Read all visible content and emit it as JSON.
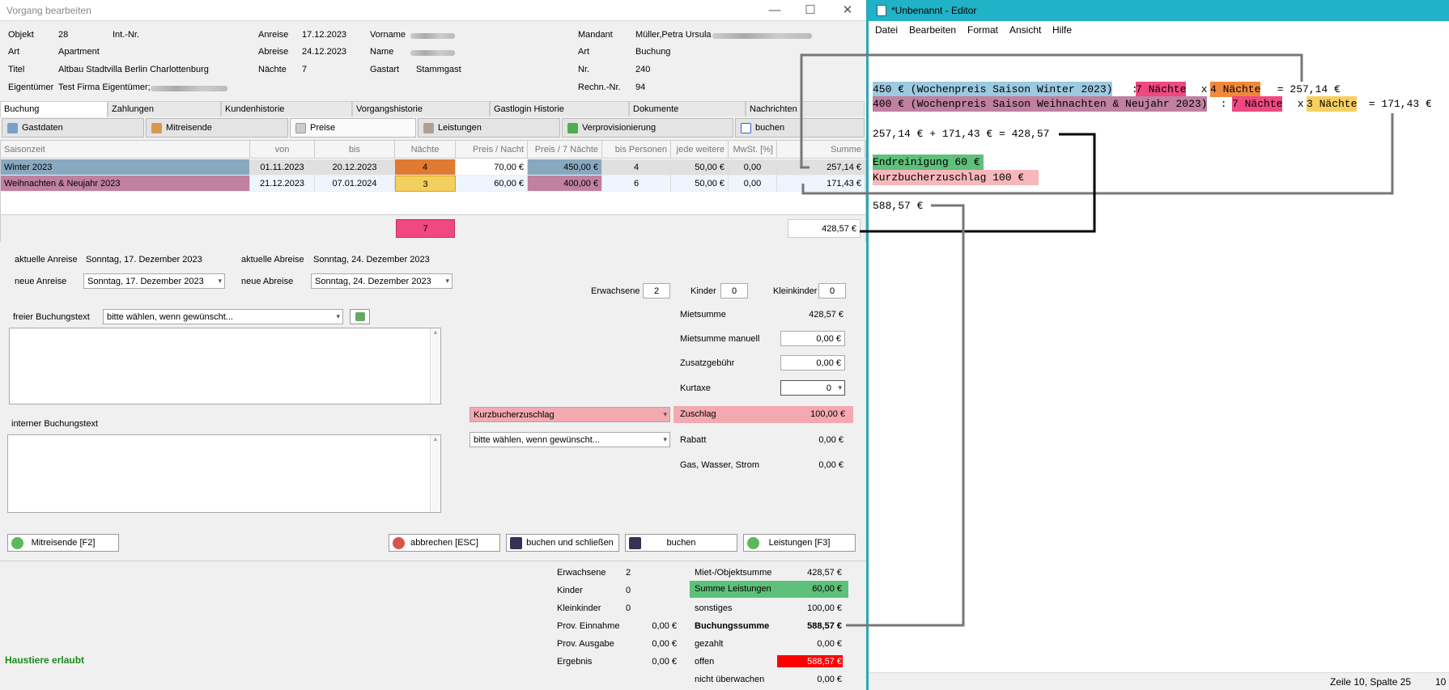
{
  "window": {
    "title": "Vorgang bearbeiten",
    "min": "—",
    "max": "☐",
    "close": "✕"
  },
  "header": {
    "objekt_l": "Objekt",
    "objekt_v": "28",
    "intnr_l": "Int.-Nr.",
    "art_l": "Art",
    "art_v": "Apartment",
    "titel_l": "Titel",
    "titel_v": "Altbau Stadtvilla Berlin Charlottenburg",
    "eigentuemer_l": "Eigentümer",
    "eigentuemer_v": "Test Firma Eigentümer;",
    "anreise_l": "Anreise",
    "anreise_v": "17.12.2023",
    "abreise_l": "Abreise",
    "abreise_v": "24.12.2023",
    "naechte_l": "Nächte",
    "naechte_v": "7",
    "vorname_l": "Vorname",
    "name_l": "Name",
    "gastart_l": "Gastart",
    "gastart_v": "Stammgast",
    "mandant_l": "Mandant",
    "mandant_v": "Müller,Petra Ursula",
    "art2_l": "Art",
    "art2_v": "Buchung",
    "nr_l": "Nr.",
    "nr_v": "240",
    "rechnr_l": "Rechn.-Nr.",
    "rechnr_v": "94"
  },
  "tabs1": [
    "Buchung",
    "Zahlungen",
    "Kundenhistorie",
    "Vorgangshistorie",
    "Gastlogin Historie",
    "Dokumente",
    "Nachrichten"
  ],
  "tabs2": [
    "Gastdaten",
    "Mitreisende",
    "Preise",
    "Leistungen",
    "Verprovisionierung",
    "buchen"
  ],
  "grid": {
    "headers": [
      "Saisonzeit",
      "von",
      "bis",
      "Nächte",
      "Preis / Nacht",
      "Preis / 7 Nächte",
      "bis Personen",
      "jede weitere",
      "MwSt. [%]",
      "Summe"
    ],
    "rows": [
      [
        "Winter 2023",
        "01.11.2023",
        "20.12.2023",
        "4",
        "70,00 €",
        "450,00 €",
        "4",
        "50,00 €",
        "0,00",
        "257,14 €"
      ],
      [
        "Weihnachten & Neujahr 2023",
        "21.12.2023",
        "07.01.2024",
        "3",
        "60,00 €",
        "400,00 €",
        "6",
        "50,00 €",
        "0,00",
        "171,43 €"
      ]
    ],
    "total_nights": "7",
    "total_sum": "428,57 €"
  },
  "dates": {
    "aktuelle_anreise_l": "aktuelle Anreise",
    "aktuelle_anreise_v": "Sonntag, 17. Dezember 2023",
    "aktuelle_abreise_l": "aktuelle Abreise",
    "aktuelle_abreise_v": "Sonntag, 24. Dezember 2023",
    "neue_anreise_l": "neue Anreise",
    "neue_anreise_v": "Sonntag, 17. Dezember 2023",
    "neue_abreise_l": "neue Abreise",
    "neue_abreise_v": "Sonntag, 24. Dezember 2023"
  },
  "persons": {
    "erw_l": "Erwachsene",
    "erw_v": "2",
    "kinder_l": "Kinder",
    "kinder_v": "0",
    "klein_l": "Kleinkinder",
    "klein_v": "0"
  },
  "texts": {
    "frei_l": "freier Buchungstext",
    "frei_v": "bitte wählen, wenn gewünscht...",
    "intern_l": "interner Buchungstext"
  },
  "pricing": {
    "mietsumme_l": "Mietsumme",
    "mietsumme_v": "428,57 €",
    "manuell_l": "Mietsumme manuell",
    "manuell_v": "0,00 €",
    "zusatz_l": "Zusatzgebühr",
    "zusatz_v": "0,00 €",
    "kurtaxe_l": "Kurtaxe",
    "kurtaxe_v": "0",
    "zuschlag_sel": "Kurzbucherzuschlag",
    "zuschlag_l": "Zuschlag",
    "zuschlag_v": "100,00 €",
    "rabatt_sel": "bitte wählen, wenn gewünscht...",
    "rabatt_l": "Rabatt",
    "rabatt_v": "0,00 €",
    "gas_l": "Gas, Wasser, Strom",
    "gas_v": "0,00 €"
  },
  "buttons": {
    "mitreisende": "Mitreisende [F2]",
    "abbrechen": "abbrechen [ESC]",
    "buchen_schliessen": "buchen und schließen",
    "buchen": "buchen",
    "leistungen": "Leistungen [F3]"
  },
  "summary": {
    "erw_l": "Erwachsene",
    "erw_v": "2",
    "kinder_l": "Kinder",
    "kinder_v": "0",
    "klein_l": "Kleinkinder",
    "klein_v": "0",
    "prov_ein_l": "Prov. Einnahme",
    "prov_ein_v": "0,00 €",
    "prov_aus_l": "Prov. Ausgabe",
    "prov_aus_v": "0,00 €",
    "ergebnis_l": "Ergebnis",
    "ergebnis_v": "0,00 €",
    "miet_l": "Miet-/Objektsumme",
    "miet_v": "428,57 €",
    "leist_l": "Summe Leistungen",
    "leist_v": "60,00 €",
    "sonst_l": "sonstiges",
    "sonst_v": "100,00 €",
    "buchung_l": "Buchungssumme",
    "buchung_v": "588,57 €",
    "gezahlt_l": "gezahlt",
    "gezahlt_v": "0,00 €",
    "offen_l": "offen",
    "offen_v": "588,57 €",
    "nicht_l": "nicht überwachen",
    "nicht_v": "0,00 €",
    "haustiere": "Haustiere erlaubt"
  },
  "notepad": {
    "title": "*Unbenannt - Editor",
    "menu": [
      "Datei",
      "Bearbeiten",
      "Format",
      "Ansicht",
      "Hilfe"
    ],
    "l1a": "450 € (Wochenpreis Saison Winter 2023)",
    "l1b": " : ",
    "l1c": "7 Nächte",
    "l1d": " x ",
    "l1e": "4 Nächte",
    "l1f": " = 257,14 €",
    "l2a": "400 € (Wochenpreis Saison Weihnachten & Neujahr 2023)",
    "l2b": " : ",
    "l2c": "7 Nächte",
    "l2d": " x ",
    "l2e": "3 Nächte",
    "l2f": " = 171,43 €",
    "l3": "257,14 € + 171,43 € = 428,57",
    "l4": "Endreinigung 60 €",
    "l5": "Kurzbucherzuschlag 100 €",
    "l6": "588,57 €",
    "status": "Zeile 10, Spalte 25",
    "status2": "10"
  }
}
